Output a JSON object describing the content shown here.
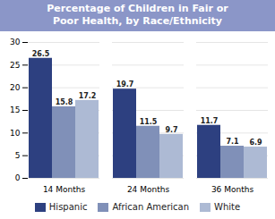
{
  "chart_data": {
    "type": "bar",
    "title": "Percentage of Children in Fair or\nPoor Health, by Race/Ethnicity",
    "categories": [
      "14 Months",
      "24 Months",
      "36 Months"
    ],
    "series": [
      {
        "name": "Hispanic",
        "color": "#2d4080",
        "values": [
          26.5,
          19.7,
          11.7
        ]
      },
      {
        "name": "African American",
        "color": "#8090b8",
        "values": [
          15.8,
          11.5,
          7.1
        ]
      },
      {
        "name": "White",
        "color": "#adbad4",
        "values": [
          17.2,
          9.7,
          6.9
        ]
      }
    ],
    "ylim": [
      0,
      30
    ],
    "yticks": [
      0,
      5,
      10,
      15,
      20,
      25,
      30
    ],
    "grid": true,
    "data_labels": true,
    "legend": "bottom"
  }
}
